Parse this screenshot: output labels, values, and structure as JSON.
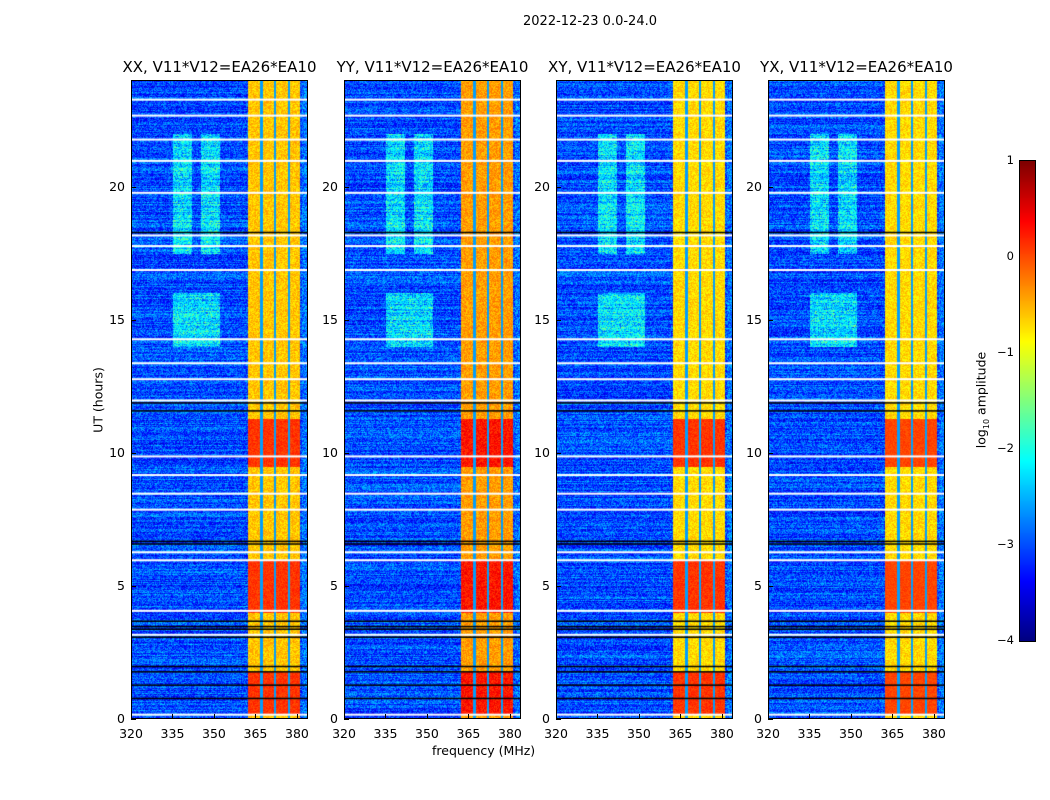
{
  "suptitle": "2022-12-23 0.0-24.0",
  "xlabel": "frequency (MHz)",
  "ylabel": "UT (hours)",
  "colorbar": {
    "label_prefix": "log",
    "label_sub": "10",
    "label_suffix": " amplitude",
    "ticks": [
      "1",
      "0",
      "−1",
      "−2",
      "−3",
      "−4"
    ],
    "range": [
      -4,
      1
    ],
    "colormap": "jet"
  },
  "chart_data": {
    "type": "heatmap",
    "title": "2022-12-23 0.0-24.0",
    "xlabel": "frequency (MHz)",
    "ylabel": "UT (hours)",
    "xlim": [
      320,
      384
    ],
    "ylim": [
      0,
      24
    ],
    "x_ticks": [
      "320",
      "335",
      "350",
      "365",
      "380"
    ],
    "y_ticks": [
      "0",
      "5",
      "10",
      "15",
      "20"
    ],
    "panels": [
      {
        "title": "XX, V11*V12=EA26*EA10",
        "seed": 1,
        "band_level": -0.6,
        "strong_level": 0.4
      },
      {
        "title": "YY, V11*V12=EA26*EA10",
        "seed": 2,
        "band_level": -0.4,
        "strong_level": 0.6
      },
      {
        "title": "XY, V11*V12=EA26*EA10",
        "seed": 3,
        "band_level": -0.7,
        "strong_level": 0.4
      },
      {
        "title": "YX, V11*V12=EA26*EA10",
        "seed": 4,
        "band_level": -0.7,
        "strong_level": 0.3
      }
    ],
    "background_level": -3.0,
    "rfi_band_mhz": [
      362,
      381
    ],
    "subband_gaps_mhz": [
      367,
      372,
      377
    ],
    "strong_rfi_hours": [
      [
        9.5,
        11.3
      ],
      [
        4.0,
        6.0
      ],
      [
        0.2,
        1.8
      ]
    ],
    "flagged_black_hours": [
      18.3,
      11.9,
      11.6,
      6.7,
      6.6,
      3.7,
      3.5,
      3.4,
      3.1,
      2.0,
      1.8,
      1.3,
      0.8
    ],
    "flagged_white_hours": [
      23.3,
      22.7,
      21.8,
      21.0,
      19.8,
      18.2,
      17.8,
      16.9,
      14.3,
      13.4,
      12.8,
      12.0,
      9.9,
      9.2,
      8.5,
      7.9,
      6.3,
      6.0,
      4.1,
      3.2,
      0.2
    ],
    "enhanced_regions": [
      {
        "mhz": [
          335,
          342
        ],
        "hours": [
          17.5,
          22
        ]
      },
      {
        "mhz": [
          345,
          352
        ],
        "hours": [
          17.5,
          22
        ]
      },
      {
        "mhz": [
          335,
          352
        ],
        "hours": [
          14,
          16
        ]
      }
    ]
  }
}
